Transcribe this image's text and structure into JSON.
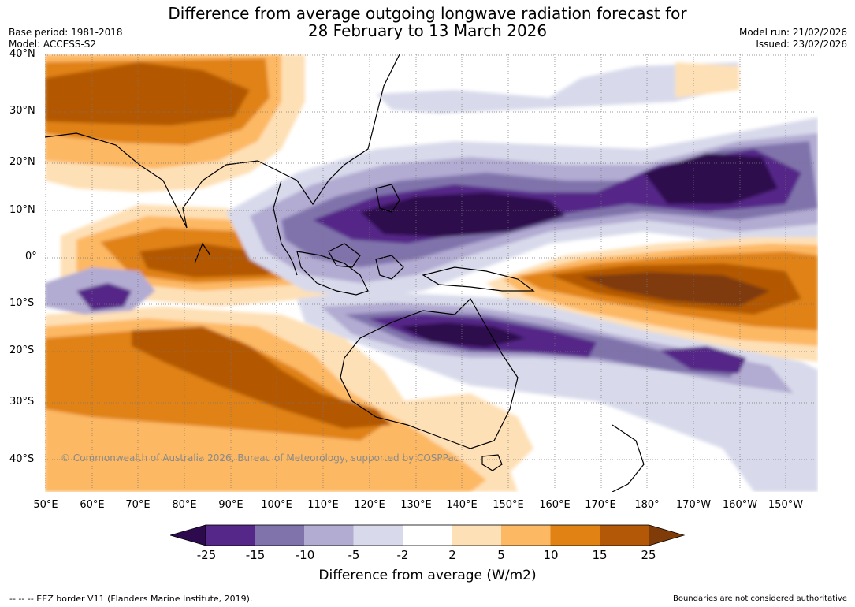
{
  "title": {
    "line1": "Difference from average outgoing longwave radiation forecast for",
    "line2": "28 February to 13 March 2026"
  },
  "meta": {
    "base_period": "Base period: 1981-2018",
    "model": "Model: ACCESS-S2",
    "model_run": "Model run: 21/02/2026",
    "issued": "Issued: 23/02/2026"
  },
  "lat_labels": [
    "40°N",
    "30°N",
    "20°N",
    "10°N",
    "0°",
    "10°S",
    "20°S",
    "30°S",
    "40°S"
  ],
  "lon_labels": [
    "50°E",
    "60°E",
    "70°E",
    "80°E",
    "90°E",
    "100°E",
    "110°E",
    "120°E",
    "130°E",
    "140°E",
    "150°E",
    "160°E",
    "170°E",
    "180°",
    "170°W",
    "160°W",
    "150°W"
  ],
  "copyright": "© Commonwealth of Australia 2026, Bureau of Meteorology, supported by COSPPac",
  "colorbar": {
    "title": "Difference from average (W/m2)",
    "ticks": [
      "-25",
      "-15",
      "-10",
      "-5",
      "-2",
      "2",
      "5",
      "10",
      "15",
      "25"
    ],
    "colors": [
      "#2d0a4e",
      "#542788",
      "#8073ac",
      "#b2abd2",
      "#d8daeb",
      "#ffffff",
      "#fee0b6",
      "#fdb863",
      "#e08214",
      "#b35806",
      "#7f3b08"
    ]
  },
  "footer": {
    "eez": "--  --  -- EEZ border V11 (Flanders Marine Institute, 2019).",
    "boundaries": "Boundaries are not considered authoritative"
  }
}
